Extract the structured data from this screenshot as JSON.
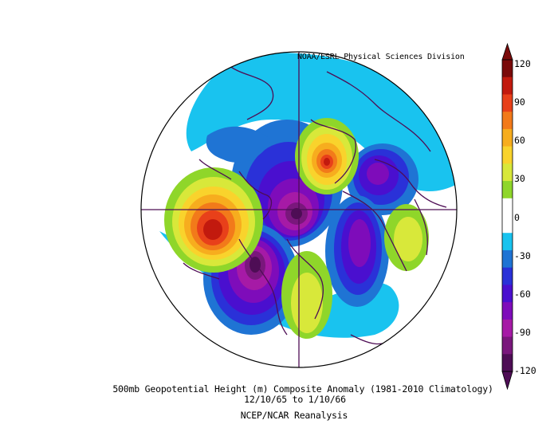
{
  "map": {
    "credit": "NOAA/ESRL Physical Sciences Division",
    "projection": "north-polar-stereographic",
    "variable": "500mb Geopotential Height anomaly"
  },
  "caption": {
    "title": "500mb Geopotential Height (m) Composite Anomaly (1981-2010 Climatology)",
    "dates": "12/10/65  to 1/10/66",
    "source": "NCEP/NCAR Reanalysis"
  },
  "colorbar": {
    "units": "m",
    "ticks": [
      "120",
      "90",
      "60",
      "30",
      "0",
      "-30",
      "-60",
      "-90",
      "-120"
    ],
    "colors": [
      "#7a0a0a",
      "#c21a0e",
      "#e8401a",
      "#f27a1a",
      "#f7ad1e",
      "#f9d32c",
      "#d8e83a",
      "#8fd62a",
      "#ffffff",
      "#ffffff",
      "#19c3ef",
      "#1f74d4",
      "#2a31d8",
      "#4a0fcf",
      "#7e0cba",
      "#a61aa6",
      "#7a177c",
      "#4e0d55"
    ]
  },
  "features": [
    {
      "name": "positive-anomaly-northeast-pacific",
      "sign": "positive",
      "peak_m": 110
    },
    {
      "name": "positive-anomaly-greenland",
      "sign": "positive",
      "peak_m": 100
    },
    {
      "name": "positive-anomaly-east-siberia",
      "sign": "positive",
      "peak_m": 40
    },
    {
      "name": "positive-anomaly-eastern-north-america",
      "sign": "positive",
      "peak_m": 40
    },
    {
      "name": "negative-anomaly-western-north-america",
      "sign": "negative",
      "peak_m": -120
    },
    {
      "name": "negative-anomaly-arctic",
      "sign": "negative",
      "peak_m": -110
    },
    {
      "name": "negative-anomaly-siberia",
      "sign": "negative",
      "peak_m": -90
    },
    {
      "name": "negative-anomaly-atlantic",
      "sign": "negative",
      "peak_m": -80
    }
  ]
}
